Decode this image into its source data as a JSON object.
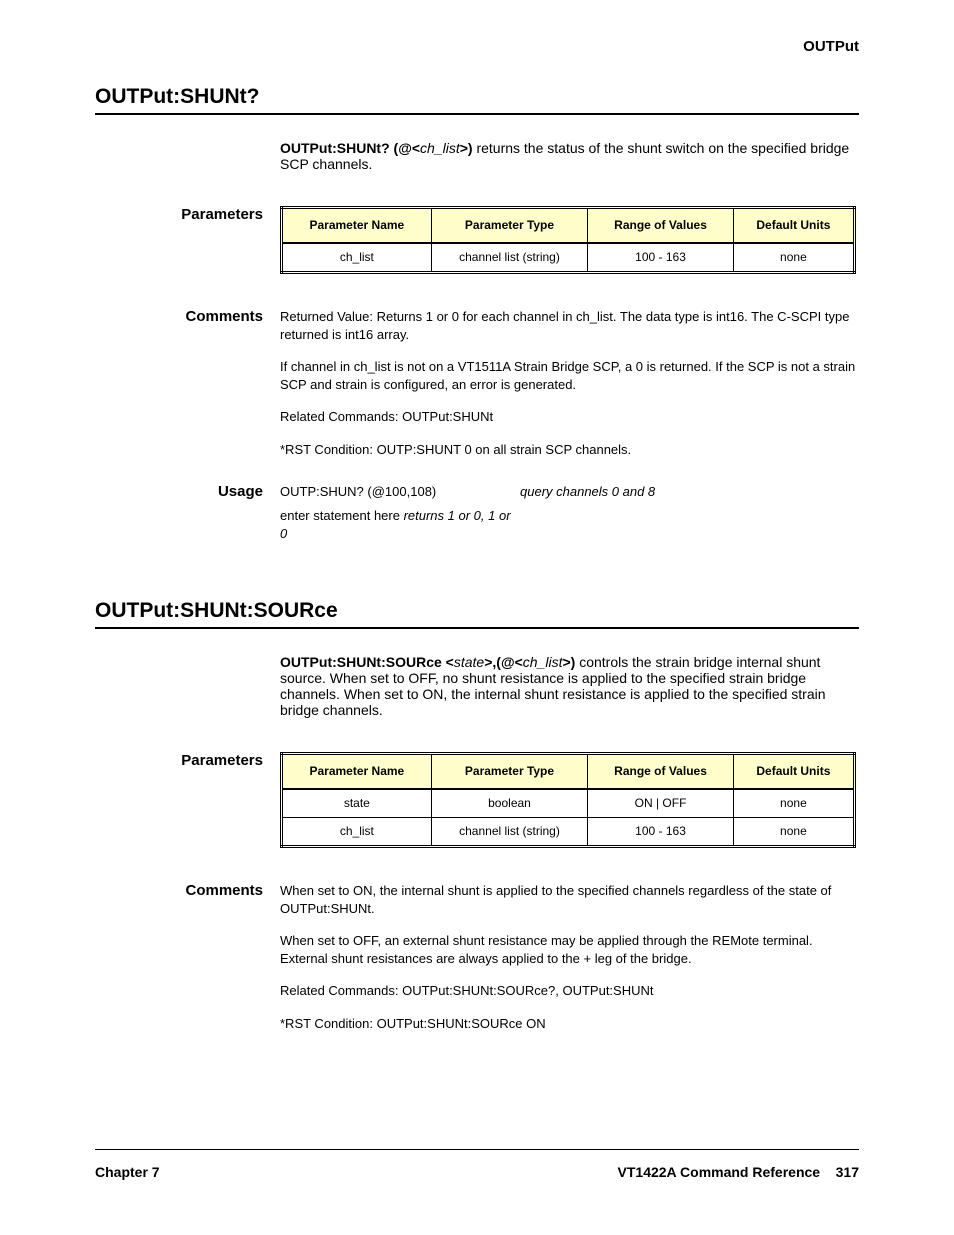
{
  "header": {
    "subsystem": "OUTPut"
  },
  "sections": [
    {
      "title": "OUTPut:SHUNt?",
      "syntax": {
        "prefix": "OUTPut:SHUNt?  (@<",
        "arg": "ch_list",
        "suffix": ">)",
        "desc_pre": "  returns the status of the shunt switch on the specified bridge SCP channels."
      },
      "param_label": "Parameters",
      "table": {
        "headers": [
          "Parameter Name",
          "Parameter Type",
          "Range of Values",
          "Default Units"
        ],
        "rows": [
          [
            "ch_list",
            "channel list (string)",
            "100 - 163",
            "none"
          ]
        ]
      },
      "comments_label": "Comments",
      "comments": [
        "Returned Value: Returns 1 or 0 for each channel in ch_list. The data type is int16. The C-SCPI type returned is int16 array.",
        "If channel in ch_list is not on a VT1511A Strain Bridge SCP, a 0 is returned. If the SCP is not a strain SCP and strain is configured, an error is generated.",
        "Related Commands: OUTPut:SHUNt",
        "*RST Condition: OUTP:SHUNT 0 on all strain SCP channels."
      ],
      "usage_label": "Usage",
      "usage": [
        {
          "cmd": "OUTP:SHUN? (@100,108)",
          "desc": "query channels 0 and 8"
        },
        {
          "cmd_pre": "enter statement here ",
          "cmd_italic": "returns 1 or 0, 1 or 0",
          "desc": ""
        }
      ]
    },
    {
      "title": "OUTPut:SHUNt:SOURce",
      "syntax": {
        "prefix": "OUTPut:SHUNt:SOURce  <",
        "arg1": "state",
        "mid": ">,(@<",
        "arg2": "ch_list",
        "suffix": ">)",
        "desc_pre": "  controls the strain bridge internal shunt source. When set to OFF, no shunt resistance is applied to the specified strain bridge channels. When set to ON, the internal shunt resistance is applied to the specified strain bridge channels."
      },
      "param_label": "Parameters",
      "table": {
        "headers": [
          "Parameter Name",
          "Parameter Type",
          "Range of Values",
          "Default Units"
        ],
        "rows": [
          [
            "state",
            "boolean",
            "ON | OFF",
            "none"
          ],
          [
            "ch_list",
            "channel list (string)",
            "100 - 163",
            "none"
          ]
        ]
      },
      "comments_label": "Comments",
      "comments": [
        "When set to ON, the internal shunt is applied to the specified channels regardless of the state of OUTPut:SHUNt.",
        "When set to OFF, an external shunt resistance may be applied through the REMote terminal. External shunt resistances are always applied to the + leg of the bridge.",
        "Related Commands: OUTPut:SHUNt:SOURce?, OUTPut:SHUNt",
        "*RST Condition: OUTPut:SHUNt:SOURce ON"
      ]
    }
  ],
  "footer": {
    "left": "Chapter 7",
    "right_title": "VT1422A Command Reference",
    "page": "317"
  }
}
